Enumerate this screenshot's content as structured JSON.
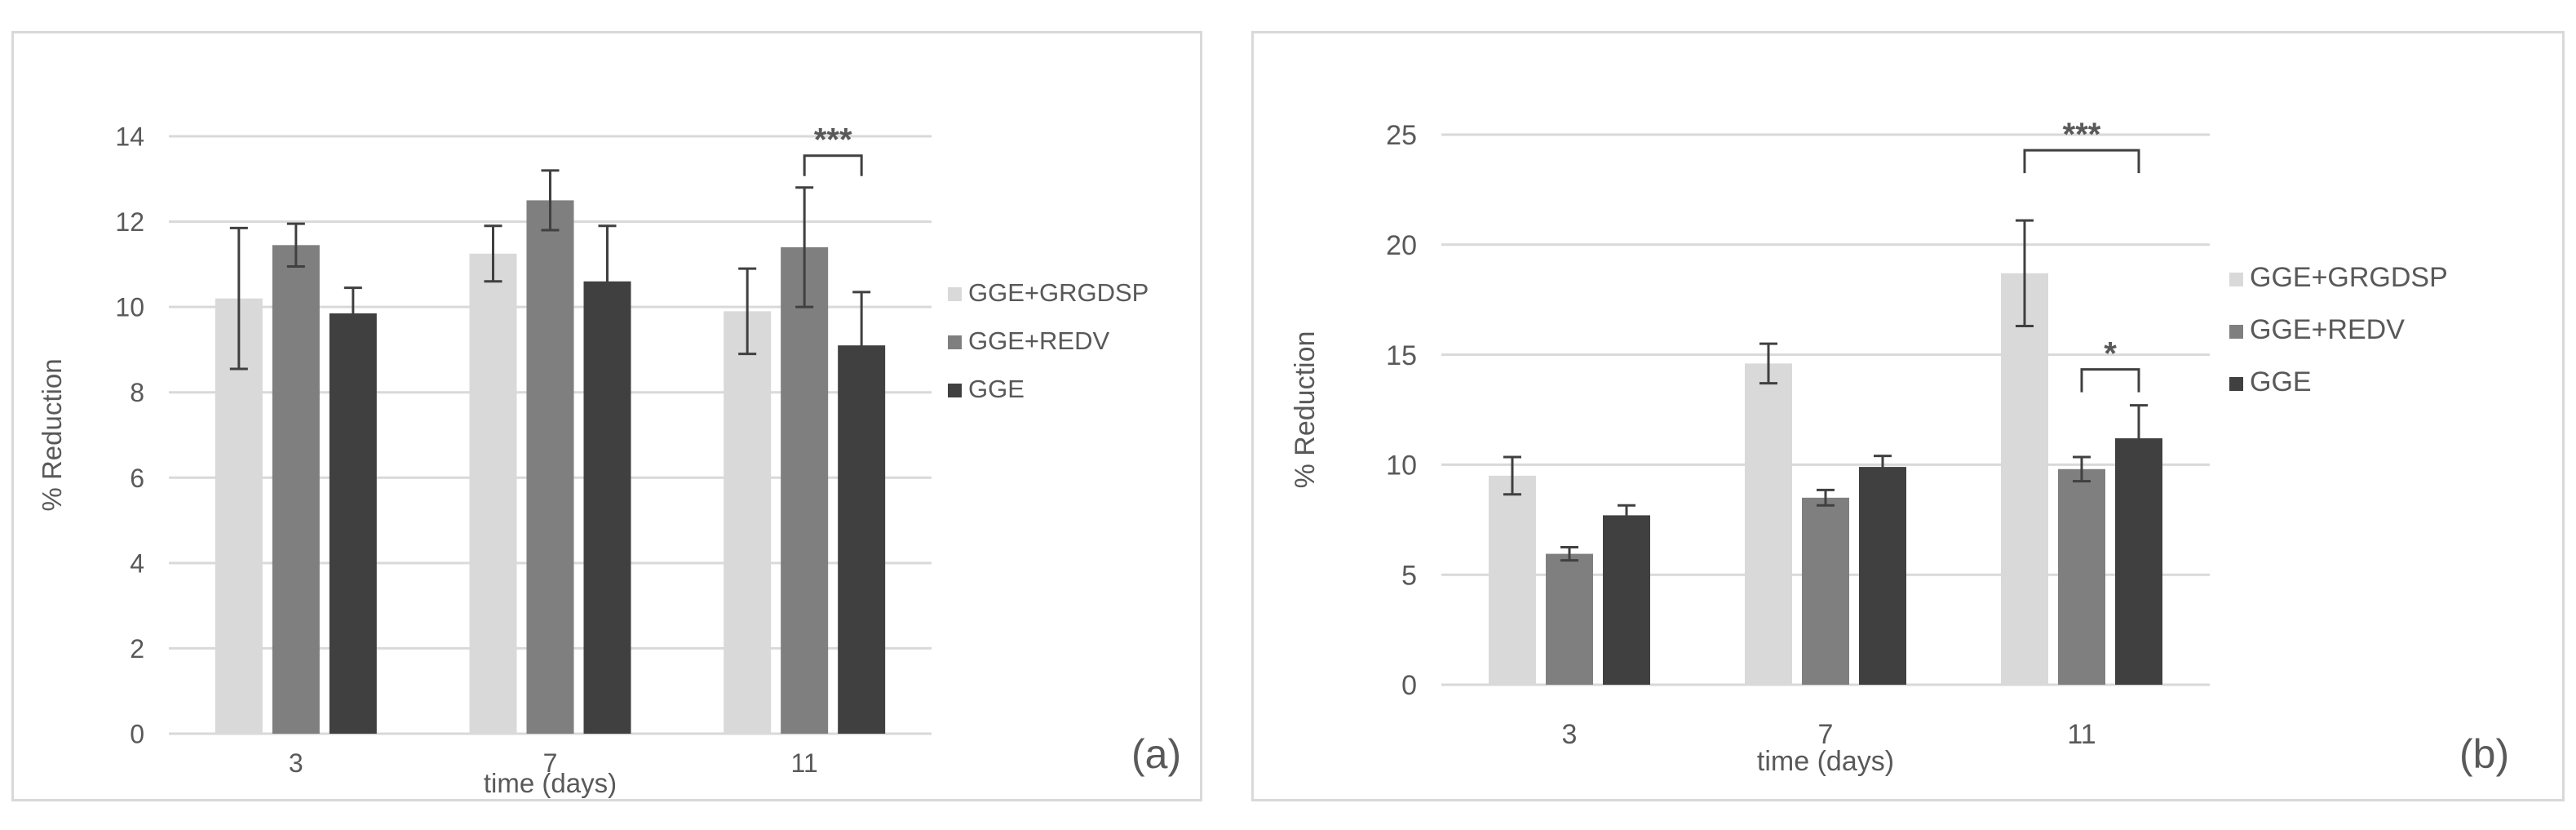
{
  "chart_data": [
    {
      "type": "bar",
      "panel_label": "(a)",
      "xlabel": "time (days)",
      "ylabel": "% Reduction",
      "ylim": [
        0,
        14
      ],
      "yticks": [
        0,
        2,
        4,
        6,
        8,
        10,
        12,
        14
      ],
      "categories": [
        "3",
        "7",
        "11"
      ],
      "series": [
        {
          "name": "GGE+GRGDSP",
          "color": "#d9d9d9",
          "values": [
            10.2,
            11.25,
            9.9
          ],
          "errors": [
            1.65,
            0.65,
            1.0
          ]
        },
        {
          "name": "GGE+REDV",
          "color": "#7f7f7f",
          "values": [
            11.45,
            12.5,
            11.4
          ],
          "errors": [
            0.5,
            0.7,
            1.4
          ]
        },
        {
          "name": "GGE",
          "color": "#404040",
          "values": [
            9.85,
            10.6,
            9.1
          ],
          "errors": [
            0.6,
            1.3,
            1.25
          ]
        }
      ],
      "annotations": [
        {
          "text": "***",
          "category": "11",
          "from_series": 1,
          "to_series": 2
        }
      ]
    },
    {
      "type": "bar",
      "panel_label": "(b)",
      "xlabel": "time (days)",
      "ylabel": "% Reduction",
      "ylim": [
        0,
        25
      ],
      "yticks": [
        0,
        5,
        10,
        15,
        20,
        25
      ],
      "categories": [
        "3",
        "7",
        "11"
      ],
      "series": [
        {
          "name": "GGE+GRGDSP",
          "color": "#d9d9d9",
          "values": [
            9.5,
            14.6,
            18.7
          ],
          "errors": [
            0.85,
            0.9,
            2.4
          ]
        },
        {
          "name": "GGE+REDV",
          "color": "#7f7f7f",
          "values": [
            5.95,
            8.5,
            9.8
          ],
          "errors": [
            0.3,
            0.35,
            0.55
          ]
        },
        {
          "name": "GGE",
          "color": "#404040",
          "values": [
            7.7,
            9.9,
            11.2
          ],
          "errors": [
            0.45,
            0.5,
            1.5
          ]
        }
      ],
      "annotations": [
        {
          "text": "***",
          "category": "11",
          "from_series": 0,
          "to_series": 2
        },
        {
          "text": "*",
          "category": "11",
          "from_series": 1,
          "to_series": 2
        }
      ]
    }
  ]
}
